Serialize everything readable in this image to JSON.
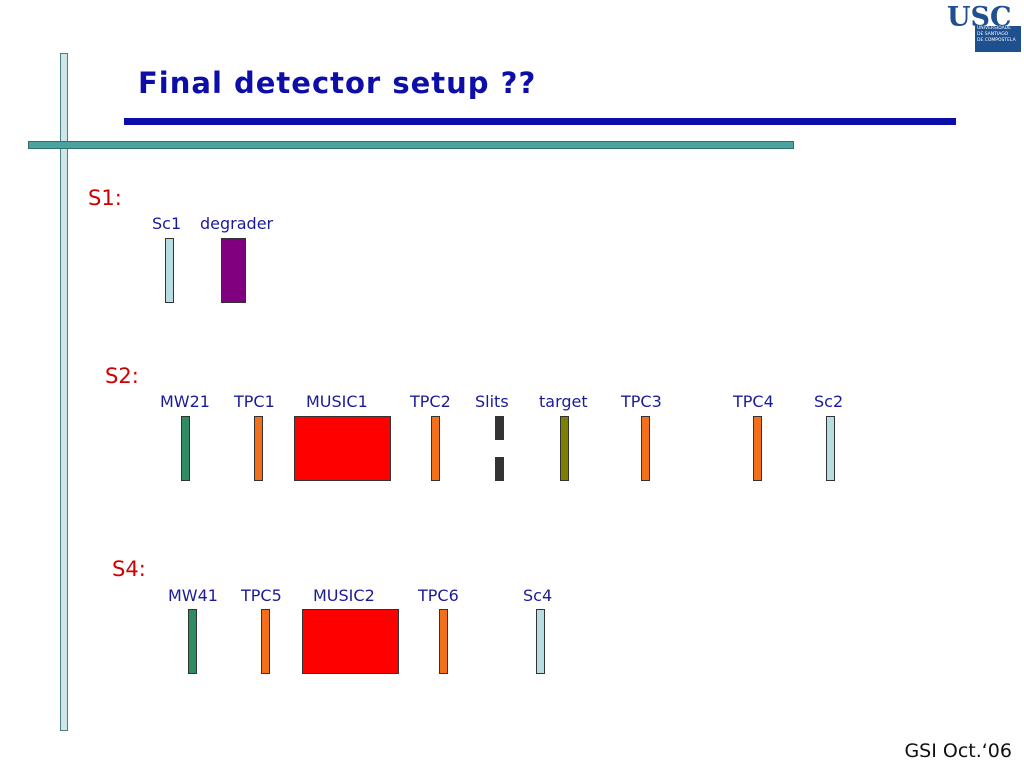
{
  "slide": {
    "title": "Final detector setup ??",
    "footer": "GSI Oct.‘06"
  },
  "logo": {
    "acronym": "USC",
    "lines": [
      "UNIVERSIDADE",
      "DE SANTIAGO",
      "DE COMPOSTELA"
    ]
  },
  "colors": {
    "scintillator": "#b8dde0",
    "degrader": "#800080",
    "mw": "#2e8b62",
    "tpc": "#f2701a",
    "music": "#ff0000",
    "slits": "#333333",
    "target": "#808000",
    "title": "#0d0ea8",
    "station": "#cc0000",
    "label": "#1b1b9a"
  },
  "stations": [
    {
      "name": "S1:",
      "detectors": [
        {
          "label": "Sc1",
          "kind": "scintillator"
        },
        {
          "label": "degrader",
          "kind": "degrader"
        }
      ]
    },
    {
      "name": "S2:",
      "detectors": [
        {
          "label": "MW21",
          "kind": "mw"
        },
        {
          "label": "TPC1",
          "kind": "tpc"
        },
        {
          "label": "MUSIC1",
          "kind": "music"
        },
        {
          "label": "TPC2",
          "kind": "tpc"
        },
        {
          "label": "Slits",
          "kind": "slits"
        },
        {
          "label": "target",
          "kind": "target"
        },
        {
          "label": "TPC3",
          "kind": "tpc"
        },
        {
          "label": "TPC4",
          "kind": "tpc"
        },
        {
          "label": "Sc2",
          "kind": "scintillator"
        }
      ]
    },
    {
      "name": "S4:",
      "detectors": [
        {
          "label": "MW41",
          "kind": "mw"
        },
        {
          "label": "TPC5",
          "kind": "tpc"
        },
        {
          "label": "MUSIC2",
          "kind": "music"
        },
        {
          "label": "TPC6",
          "kind": "tpc"
        },
        {
          "label": "Sc4",
          "kind": "scintillator"
        }
      ]
    }
  ]
}
